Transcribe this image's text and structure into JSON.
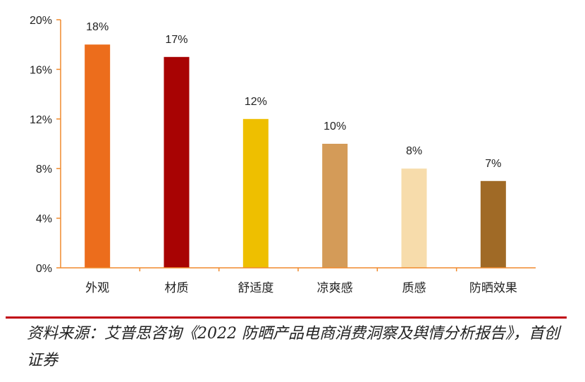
{
  "chart_data": {
    "type": "bar",
    "categories": [
      "外观",
      "材质",
      "舒适度",
      "凉爽感",
      "质感",
      "防晒效果"
    ],
    "values": [
      18,
      17,
      12,
      10,
      8,
      7
    ],
    "data_labels": [
      "18%",
      "17%",
      "12%",
      "10%",
      "8%",
      "7%"
    ],
    "colors": [
      "#ec6d1c",
      "#a80303",
      "#eebf00",
      "#d49b58",
      "#f7dcab",
      "#a06a26"
    ],
    "yticks": [
      0,
      4,
      8,
      12,
      16,
      20
    ],
    "ytick_labels": [
      "0%",
      "4%",
      "8%",
      "12%",
      "16%",
      "20%"
    ],
    "ylim": [
      0,
      20
    ],
    "title": "",
    "xlabel": "",
    "ylabel": "",
    "grid": false,
    "axis_color": "#f08a2d"
  },
  "source": "资料来源：艾普思咨询《2022 防晒产品电商消费洞察及舆情分析报告》，首创证券"
}
